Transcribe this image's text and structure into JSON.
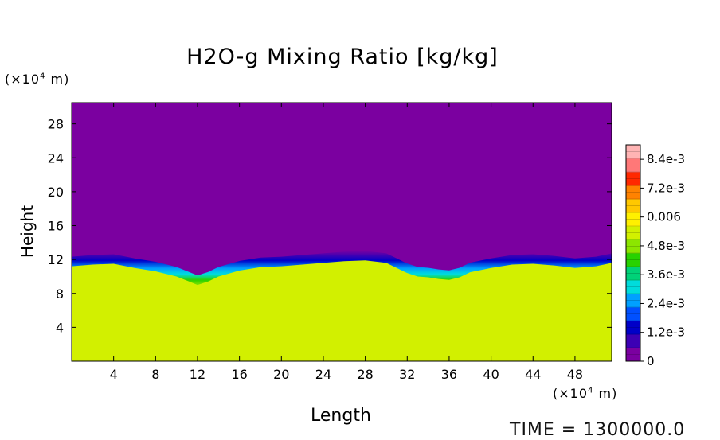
{
  "chart_data": {
    "type": "heatmap",
    "title": "H2O-g Mixing Ratio [kg/kg]",
    "xlabel": "Length",
    "ylabel": "Height",
    "x_unit_prefix": "(×10",
    "x_unit_exp": "4",
    "x_unit_suffix": " m)",
    "y_unit_prefix": "(×10",
    "y_unit_exp": "4",
    "y_unit_suffix": " m)",
    "xlim": [
      0,
      51.5
    ],
    "ylim": [
      0,
      30.5
    ],
    "x_ticks": [
      4,
      8,
      12,
      16,
      20,
      24,
      28,
      32,
      36,
      40,
      44,
      48
    ],
    "y_ticks": [
      4,
      8,
      12,
      16,
      20,
      24,
      28
    ],
    "colorbar": {
      "min": 0,
      "max": 0.009,
      "tick_values": [
        0,
        0.0012,
        0.0024,
        0.0036,
        0.0048,
        0.006,
        0.0072,
        0.0084
      ],
      "tick_labels": [
        "0",
        "1.2e-3",
        "2.4e-3",
        "3.6e-3",
        "4.8e-3",
        "0.006",
        "7.2e-3",
        "8.4e-3"
      ],
      "colors": [
        "#7b00a0",
        "#3c00b4",
        "#0000c8",
        "#0050ff",
        "#00a0ff",
        "#00dcdc",
        "#00d278",
        "#28d200",
        "#8ce600",
        "#d2f000",
        "#fff000",
        "#ffc800",
        "#ff8200",
        "#ff2800",
        "#ff7878",
        "#ffb4b4"
      ]
    },
    "field": {
      "upper_value": 0,
      "lower_value": 0.0056,
      "interface_height_x": [
        0,
        2,
        4,
        6,
        8,
        10,
        11,
        12,
        13,
        14,
        16,
        18,
        20,
        22,
        24,
        26,
        28,
        30,
        31,
        32,
        33,
        34,
        35,
        36,
        37,
        38,
        40,
        42,
        44,
        46,
        48,
        50,
        51.5
      ],
      "interface_height_y": [
        11.2,
        11.4,
        11.5,
        11.0,
        10.6,
        10.0,
        9.5,
        9.0,
        9.4,
        10.0,
        10.7,
        11.1,
        11.2,
        11.4,
        11.6,
        11.8,
        11.9,
        11.6,
        11.0,
        10.4,
        10.0,
        9.9,
        9.7,
        9.6,
        9.9,
        10.5,
        11.0,
        11.4,
        11.5,
        11.3,
        11.0,
        11.2,
        11.6
      ]
    },
    "annotation": "TIME  =  1300000.0"
  }
}
